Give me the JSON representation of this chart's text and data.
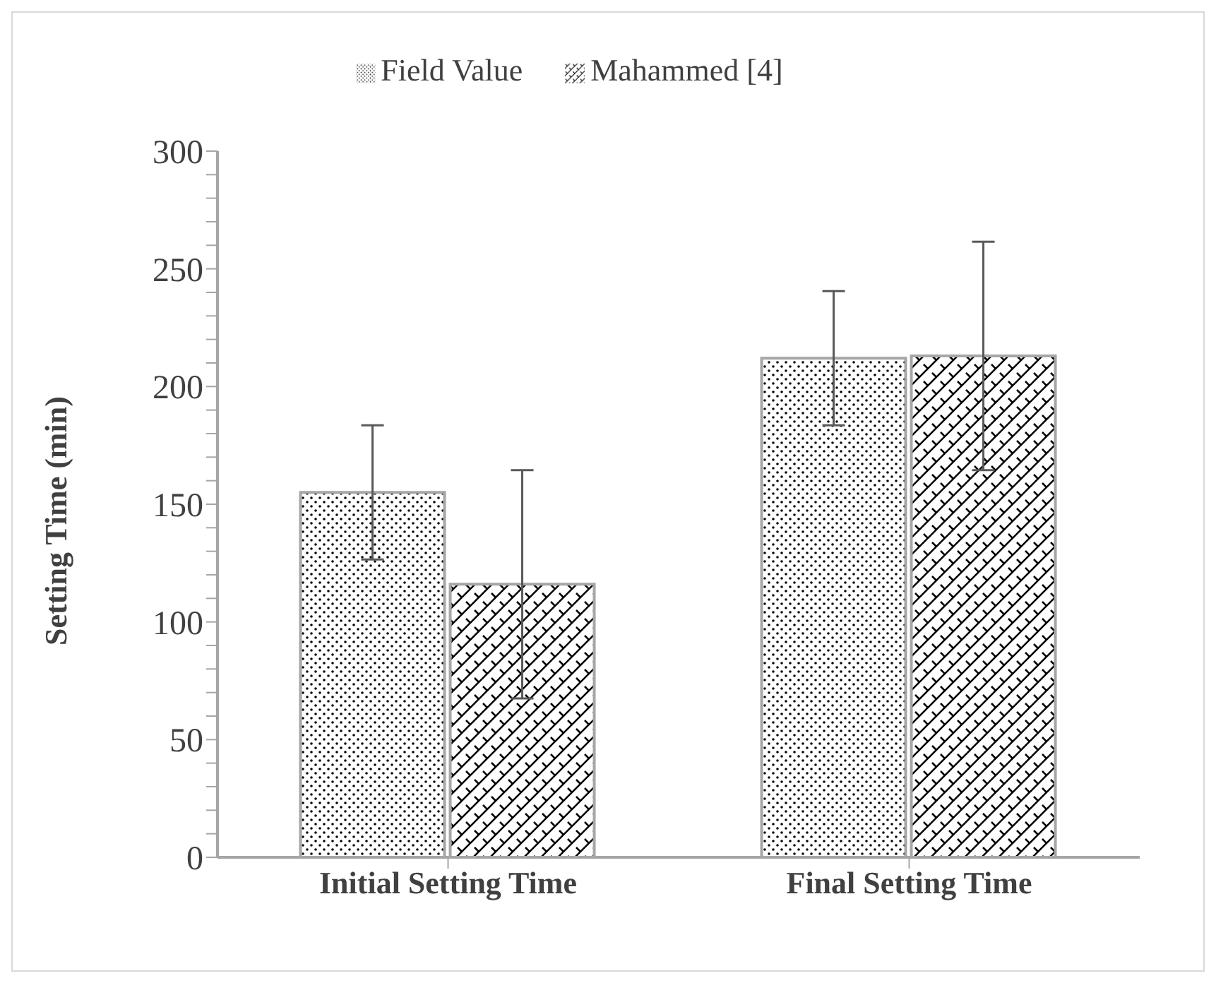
{
  "chart_data": {
    "type": "bar",
    "ylabel": "Setting Time (min)",
    "categories": [
      "Initial Setting Time",
      "Final Setting Time"
    ],
    "series": [
      {
        "name": "Field Value",
        "color": "#a6a6a6",
        "values": [
          155,
          212
        ],
        "errors": [
          28.5,
          28.5
        ]
      },
      {
        "name": "Mahammed [4]",
        "color": "#a6a6a6",
        "values": [
          116,
          213
        ],
        "errors": [
          48.5,
          48.5
        ]
      }
    ],
    "ylim": [
      0,
      300
    ],
    "yticks": [
      0,
      {
        "value": 10,
        "label": null
      },
      {
        "value": 20,
        "label": null
      },
      {
        "value": 30,
        "label": null
      },
      {
        "value": 40,
        "label": null
      },
      50,
      {
        "value": 60,
        "label": null
      },
      {
        "value": 70,
        "label": null
      },
      {
        "value": 80,
        "label": null
      },
      {
        "value": 90,
        "label": null
      },
      100,
      {
        "value": 110,
        "label": null
      },
      {
        "value": 120,
        "label": null
      },
      {
        "value": 130,
        "label": null
      },
      {
        "value": 140,
        "label": null
      },
      150,
      {
        "value": 160,
        "label": null
      },
      {
        "value": 170,
        "label": null
      },
      {
        "value": 180,
        "label": null
      },
      {
        "value": 190,
        "label": null
      },
      200,
      {
        "value": 210,
        "label": null
      },
      {
        "value": 220,
        "label": null
      },
      {
        "value": 230,
        "label": null
      },
      {
        "value": 240,
        "label": null
      },
      250,
      {
        "value": 260,
        "label": null
      },
      {
        "value": 270,
        "label": null
      },
      {
        "value": 280,
        "label": null
      },
      {
        "value": 290,
        "label": null
      },
      300
    ],
    "grid": false,
    "legend": "top"
  }
}
